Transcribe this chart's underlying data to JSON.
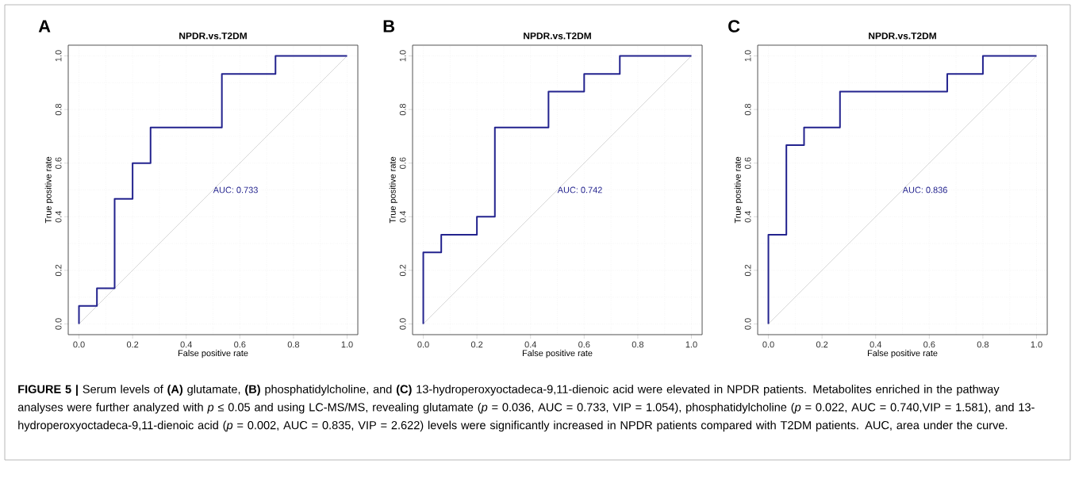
{
  "chart_data": [
    {
      "type": "line",
      "title": "NPDR.vs.T2DM",
      "xlabel": "False positive rate",
      "ylabel": "True positive rate",
      "xlim": [
        -0.04,
        1.04
      ],
      "ylim": [
        -0.04,
        1.04
      ],
      "xticks": [
        {
          "value": 0,
          "label": "0.0"
        },
        {
          "value": 0.2,
          "label": "0.2"
        },
        {
          "value": 0.4,
          "label": "0.4"
        },
        {
          "value": 0.6,
          "label": "0.6"
        },
        {
          "value": 0.8,
          "label": "0.8"
        },
        {
          "value": 1,
          "label": "1.0"
        }
      ],
      "yticks": [
        {
          "value": 0,
          "label": "0.0"
        },
        {
          "value": 0.2,
          "label": "0.2"
        },
        {
          "value": 0.4,
          "label": "0.4"
        },
        {
          "value": 0.6,
          "label": "0.6"
        },
        {
          "value": 0.8,
          "label": "0.8"
        },
        {
          "value": 1,
          "label": "1.0"
        }
      ],
      "grid": true,
      "marker": "none",
      "line_style": "solid",
      "series": [
        {
          "color": "#bebebe",
          "x": [
            0,
            1
          ],
          "values": [
            0,
            1
          ]
        },
        {
          "color": "#23238e",
          "x": [
            0,
            0,
            0.067,
            0.067,
            0.133,
            0.133,
            0.2,
            0.2,
            0.267,
            0.267,
            0.533,
            0.533,
            0.733,
            0.733,
            1
          ],
          "values": [
            0,
            0.067,
            0.067,
            0.133,
            0.133,
            0.467,
            0.467,
            0.6,
            0.6,
            0.733,
            0.733,
            0.933,
            0.933,
            1,
            1
          ]
        }
      ],
      "annotations": [
        "A",
        "AUC: 0.733"
      ]
    },
    {
      "type": "line",
      "title": "NPDR.vs.T2DM",
      "xlabel": "False positive rate",
      "ylabel": "True positive rate",
      "xlim": [
        -0.04,
        1.04
      ],
      "ylim": [
        -0.04,
        1.04
      ],
      "xticks": [
        {
          "value": 0,
          "label": "0.0"
        },
        {
          "value": 0.2,
          "label": "0.2"
        },
        {
          "value": 0.4,
          "label": "0.4"
        },
        {
          "value": 0.6,
          "label": "0.6"
        },
        {
          "value": 0.8,
          "label": "0.8"
        },
        {
          "value": 1,
          "label": "1.0"
        }
      ],
      "yticks": [
        {
          "value": 0,
          "label": "0.0"
        },
        {
          "value": 0.2,
          "label": "0.2"
        },
        {
          "value": 0.4,
          "label": "0.4"
        },
        {
          "value": 0.6,
          "label": "0.6"
        },
        {
          "value": 0.8,
          "label": "0.8"
        },
        {
          "value": 1,
          "label": "1.0"
        }
      ],
      "grid": true,
      "marker": "none",
      "line_style": "solid",
      "series": [
        {
          "color": "#bebebe",
          "x": [
            0,
            1
          ],
          "values": [
            0,
            1
          ]
        },
        {
          "color": "#23238e",
          "x": [
            0,
            0,
            0.067,
            0.067,
            0.2,
            0.2,
            0.267,
            0.267,
            0.467,
            0.467,
            0.6,
            0.6,
            0.733,
            0.733,
            1
          ],
          "values": [
            0,
            0.267,
            0.267,
            0.333,
            0.333,
            0.4,
            0.4,
            0.733,
            0.733,
            0.867,
            0.867,
            0.933,
            0.933,
            1,
            1
          ]
        }
      ],
      "annotations": [
        "B",
        "AUC: 0.742"
      ]
    },
    {
      "type": "line",
      "title": "NPDR.vs.T2DM",
      "xlabel": "False positive rate",
      "ylabel": "True positive rate",
      "xlim": [
        -0.04,
        1.04
      ],
      "ylim": [
        -0.04,
        1.04
      ],
      "xticks": [
        {
          "value": 0,
          "label": "0.0"
        },
        {
          "value": 0.2,
          "label": "0.2"
        },
        {
          "value": 0.4,
          "label": "0.4"
        },
        {
          "value": 0.6,
          "label": "0.6"
        },
        {
          "value": 0.8,
          "label": "0.8"
        },
        {
          "value": 1,
          "label": "1.0"
        }
      ],
      "yticks": [
        {
          "value": 0,
          "label": "0.0"
        },
        {
          "value": 0.2,
          "label": "0.2"
        },
        {
          "value": 0.4,
          "label": "0.4"
        },
        {
          "value": 0.6,
          "label": "0.6"
        },
        {
          "value": 0.8,
          "label": "0.8"
        },
        {
          "value": 1,
          "label": "1.0"
        }
      ],
      "grid": true,
      "marker": "none",
      "line_style": "solid",
      "series": [
        {
          "color": "#bebebe",
          "x": [
            0,
            1
          ],
          "values": [
            0,
            1
          ]
        },
        {
          "color": "#23238e",
          "x": [
            0,
            0,
            0.067,
            0.067,
            0.133,
            0.133,
            0.267,
            0.267,
            0.667,
            0.667,
            0.8,
            0.8,
            1
          ],
          "values": [
            0,
            0.333,
            0.333,
            0.667,
            0.667,
            0.733,
            0.733,
            0.867,
            0.867,
            0.933,
            0.933,
            1,
            1
          ]
        }
      ],
      "annotations": [
        "C",
        "AUC: 0.836",
        "**FIGURE 5 |** Serum levels of **(A)** glutamate, **(B)** phosphatidylcholine, and **(C)** 13-hydroperoxyoctadeca-9,11-dienoic acid were elevated in NPDR patients. Metabolites enriched in the pathway analyses were further analyzed with *p* ≤ 0.05 and using LC-MS/MS, revealing glutamate (*p* = 0.036, AUC = 0.733, VIP = 1.054), phosphatidylcholine (*p* = 0.022, AUC = 0.740,VIP = 1.581), and 13-hydroperoxyoctadeca-9,11-dienoic acid (*p* = 0.002, AUC = 0.835, VIP = 2.622) levels were significantly increased in NPDR patients compared with T2DM patients. AUC, area under the curve."
      ]
    }
  ]
}
